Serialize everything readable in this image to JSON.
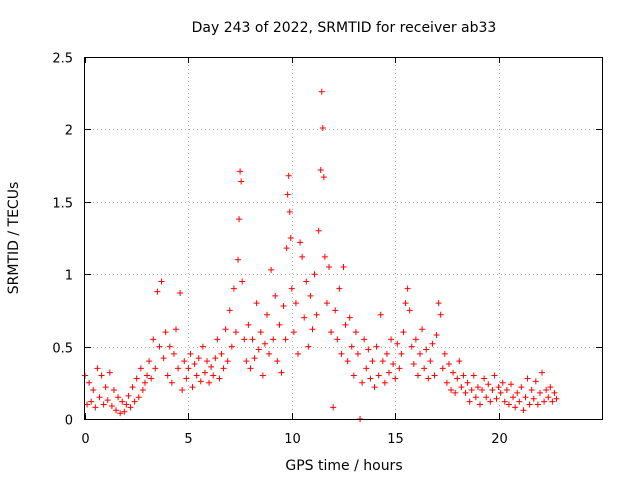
{
  "chart_data": {
    "type": "scatter",
    "title": "Day 243 of 2022, SRMTID for receiver ab33",
    "xlabel": "GPS time / hours",
    "ylabel": "SRMTID / TECUs",
    "xlim": [
      0,
      25
    ],
    "ylim": [
      0,
      2.5
    ],
    "xticks": [
      0,
      5,
      10,
      15,
      20
    ],
    "xtick_labels": [
      "0",
      "5",
      "10",
      "15",
      "20"
    ],
    "yticks": [
      0,
      0.5,
      1,
      1.5,
      2,
      2.5
    ],
    "ytick_labels": [
      "0",
      "0.5",
      "1",
      "1.5",
      "2",
      "2.5"
    ],
    "grid": true,
    "marker": "+",
    "color": "#ff0000",
    "series": [
      {
        "name": "SRMTID",
        "points": [
          [
            0.0,
            0.3
          ],
          [
            0.1,
            0.1
          ],
          [
            0.2,
            0.25
          ],
          [
            0.3,
            0.12
          ],
          [
            0.4,
            0.2
          ],
          [
            0.5,
            0.08
          ],
          [
            0.6,
            0.35
          ],
          [
            0.7,
            0.15
          ],
          [
            0.8,
            0.3
          ],
          [
            0.9,
            0.1
          ],
          [
            1.0,
            0.22
          ],
          [
            1.1,
            0.13
          ],
          [
            1.2,
            0.32
          ],
          [
            1.3,
            0.09
          ],
          [
            1.4,
            0.2
          ],
          [
            1.5,
            0.06
          ],
          [
            1.6,
            0.15
          ],
          [
            1.7,
            0.04
          ],
          [
            1.8,
            0.12
          ],
          [
            1.9,
            0.05
          ],
          [
            2.0,
            0.1
          ],
          [
            2.1,
            0.16
          ],
          [
            2.2,
            0.08
          ],
          [
            2.3,
            0.22
          ],
          [
            2.4,
            0.12
          ],
          [
            2.5,
            0.28
          ],
          [
            2.6,
            0.15
          ],
          [
            2.7,
            0.35
          ],
          [
            2.8,
            0.2
          ],
          [
            2.9,
            0.25
          ],
          [
            3.0,
            0.3
          ],
          [
            3.1,
            0.4
          ],
          [
            3.2,
            0.28
          ],
          [
            3.3,
            0.55
          ],
          [
            3.4,
            0.35
          ],
          [
            3.5,
            0.88
          ],
          [
            3.6,
            0.5
          ],
          [
            3.7,
            0.95
          ],
          [
            3.8,
            0.42
          ],
          [
            3.9,
            0.6
          ],
          [
            4.0,
            0.3
          ],
          [
            4.1,
            0.5
          ],
          [
            4.2,
            0.25
          ],
          [
            4.3,
            0.45
          ],
          [
            4.4,
            0.62
          ],
          [
            4.5,
            0.35
          ],
          [
            4.6,
            0.87
          ],
          [
            4.7,
            0.2
          ],
          [
            4.8,
            0.4
          ],
          [
            4.9,
            0.28
          ],
          [
            5.0,
            0.35
          ],
          [
            5.1,
            0.45
          ],
          [
            5.2,
            0.22
          ],
          [
            5.3,
            0.38
          ],
          [
            5.4,
            0.3
          ],
          [
            5.5,
            0.42
          ],
          [
            5.6,
            0.26
          ],
          [
            5.7,
            0.5
          ],
          [
            5.8,
            0.32
          ],
          [
            5.9,
            0.4
          ],
          [
            6.0,
            0.25
          ],
          [
            6.1,
            0.36
          ],
          [
            6.2,
            0.3
          ],
          [
            6.3,
            0.42
          ],
          [
            6.4,
            0.55
          ],
          [
            6.5,
            0.28
          ],
          [
            6.6,
            0.45
          ],
          [
            6.7,
            0.35
          ],
          [
            6.8,
            0.62
          ],
          [
            6.9,
            0.4
          ],
          [
            7.0,
            0.75
          ],
          [
            7.1,
            0.5
          ],
          [
            7.2,
            0.9
          ],
          [
            7.3,
            0.6
          ],
          [
            7.4,
            1.1
          ],
          [
            7.45,
            1.38
          ],
          [
            7.5,
            1.71
          ],
          [
            7.55,
            1.64
          ],
          [
            7.6,
            0.95
          ],
          [
            7.7,
            0.55
          ],
          [
            7.8,
            0.4
          ],
          [
            7.9,
            0.65
          ],
          [
            8.0,
            0.35
          ],
          [
            8.1,
            0.55
          ],
          [
            8.2,
            0.42
          ],
          [
            8.3,
            0.8
          ],
          [
            8.4,
            0.48
          ],
          [
            8.5,
            0.6
          ],
          [
            8.6,
            0.3
          ],
          [
            8.7,
            0.52
          ],
          [
            8.8,
            0.72
          ],
          [
            8.9,
            0.45
          ],
          [
            9.0,
            1.03
          ],
          [
            9.1,
            0.55
          ],
          [
            9.2,
            0.85
          ],
          [
            9.3,
            0.4
          ],
          [
            9.4,
            0.65
          ],
          [
            9.5,
            0.32
          ],
          [
            9.6,
            0.78
          ],
          [
            9.7,
            0.55
          ],
          [
            9.75,
            1.18
          ],
          [
            9.8,
            1.55
          ],
          [
            9.85,
            1.68
          ],
          [
            9.9,
            1.43
          ],
          [
            9.95,
            1.25
          ],
          [
            10.0,
            0.9
          ],
          [
            10.1,
            0.6
          ],
          [
            10.2,
            0.8
          ],
          [
            10.3,
            0.45
          ],
          [
            10.4,
            1.22
          ],
          [
            10.5,
            1.12
          ],
          [
            10.6,
            0.7
          ],
          [
            10.7,
            0.95
          ],
          [
            10.8,
            0.5
          ],
          [
            10.9,
            0.85
          ],
          [
            11.0,
            0.62
          ],
          [
            11.1,
            1.0
          ],
          [
            11.2,
            0.72
          ],
          [
            11.3,
            1.3
          ],
          [
            11.4,
            1.72
          ],
          [
            11.45,
            2.26
          ],
          [
            11.5,
            2.01
          ],
          [
            11.55,
            1.67
          ],
          [
            11.6,
            1.12
          ],
          [
            11.7,
            0.8
          ],
          [
            11.8,
            1.05
          ],
          [
            11.9,
            0.6
          ],
          [
            12.0,
            0.08
          ],
          [
            12.1,
            0.75
          ],
          [
            12.2,
            0.55
          ],
          [
            12.3,
            0.9
          ],
          [
            12.4,
            0.45
          ],
          [
            12.5,
            1.05
          ],
          [
            12.6,
            0.65
          ],
          [
            12.7,
            0.4
          ],
          [
            12.8,
            0.7
          ],
          [
            12.9,
            0.5
          ],
          [
            13.0,
            0.3
          ],
          [
            13.1,
            0.6
          ],
          [
            13.2,
            0.45
          ],
          [
            13.3,
            0.0
          ],
          [
            13.4,
            0.25
          ],
          [
            13.5,
            0.55
          ],
          [
            13.6,
            0.35
          ],
          [
            13.7,
            0.48
          ],
          [
            13.8,
            0.28
          ],
          [
            13.9,
            0.4
          ],
          [
            14.0,
            0.22
          ],
          [
            14.1,
            0.5
          ],
          [
            14.2,
            0.3
          ],
          [
            14.3,
            0.72
          ],
          [
            14.4,
            0.4
          ],
          [
            14.5,
            0.25
          ],
          [
            14.6,
            0.45
          ],
          [
            14.7,
            0.32
          ],
          [
            14.8,
            0.55
          ],
          [
            14.9,
            0.38
          ],
          [
            15.0,
            0.28
          ],
          [
            15.1,
            0.52
          ],
          [
            15.2,
            0.35
          ],
          [
            15.3,
            0.45
          ],
          [
            15.4,
            0.6
          ],
          [
            15.5,
            0.8
          ],
          [
            15.6,
            0.9
          ],
          [
            15.7,
            0.75
          ],
          [
            15.8,
            0.5
          ],
          [
            15.9,
            0.38
          ],
          [
            16.0,
            0.55
          ],
          [
            16.1,
            0.3
          ],
          [
            16.2,
            0.45
          ],
          [
            16.3,
            0.62
          ],
          [
            16.4,
            0.35
          ],
          [
            16.5,
            0.48
          ],
          [
            16.6,
            0.28
          ],
          [
            16.7,
            0.4
          ],
          [
            16.8,
            0.52
          ],
          [
            16.9,
            0.3
          ],
          [
            17.0,
            0.58
          ],
          [
            17.1,
            0.8
          ],
          [
            17.2,
            0.72
          ],
          [
            17.3,
            0.35
          ],
          [
            17.4,
            0.45
          ],
          [
            17.5,
            0.25
          ],
          [
            17.6,
            0.38
          ],
          [
            17.7,
            0.2
          ],
          [
            17.8,
            0.32
          ],
          [
            17.9,
            0.18
          ],
          [
            18.0,
            0.28
          ],
          [
            18.1,
            0.4
          ],
          [
            18.2,
            0.22
          ],
          [
            18.3,
            0.3
          ],
          [
            18.4,
            0.18
          ],
          [
            18.5,
            0.25
          ],
          [
            18.6,
            0.12
          ],
          [
            18.7,
            0.2
          ],
          [
            18.8,
            0.3
          ],
          [
            18.9,
            0.15
          ],
          [
            19.0,
            0.22
          ],
          [
            19.1,
            0.1
          ],
          [
            19.2,
            0.2
          ],
          [
            19.3,
            0.28
          ],
          [
            19.4,
            0.15
          ],
          [
            19.5,
            0.24
          ],
          [
            19.6,
            0.12
          ],
          [
            19.7,
            0.2
          ],
          [
            19.8,
            0.3
          ],
          [
            19.9,
            0.14
          ],
          [
            20.0,
            0.22
          ],
          [
            20.1,
            0.18
          ],
          [
            20.2,
            0.25
          ],
          [
            20.3,
            0.12
          ],
          [
            20.4,
            0.2
          ],
          [
            20.5,
            0.1
          ],
          [
            20.6,
            0.24
          ],
          [
            20.7,
            0.15
          ],
          [
            20.8,
            0.08
          ],
          [
            20.9,
            0.18
          ],
          [
            21.0,
            0.12
          ],
          [
            21.1,
            0.22
          ],
          [
            21.2,
            0.06
          ],
          [
            21.3,
            0.15
          ],
          [
            21.4,
            0.28
          ],
          [
            21.5,
            0.1
          ],
          [
            21.6,
            0.2
          ],
          [
            21.7,
            0.14
          ],
          [
            21.8,
            0.26
          ],
          [
            21.9,
            0.1
          ],
          [
            22.0,
            0.18
          ],
          [
            22.1,
            0.32
          ],
          [
            22.2,
            0.12
          ],
          [
            22.3,
            0.2
          ],
          [
            22.4,
            0.15
          ],
          [
            22.5,
            0.22
          ],
          [
            22.6,
            0.12
          ],
          [
            22.7,
            0.18
          ],
          [
            22.8,
            0.14
          ]
        ]
      }
    ]
  }
}
